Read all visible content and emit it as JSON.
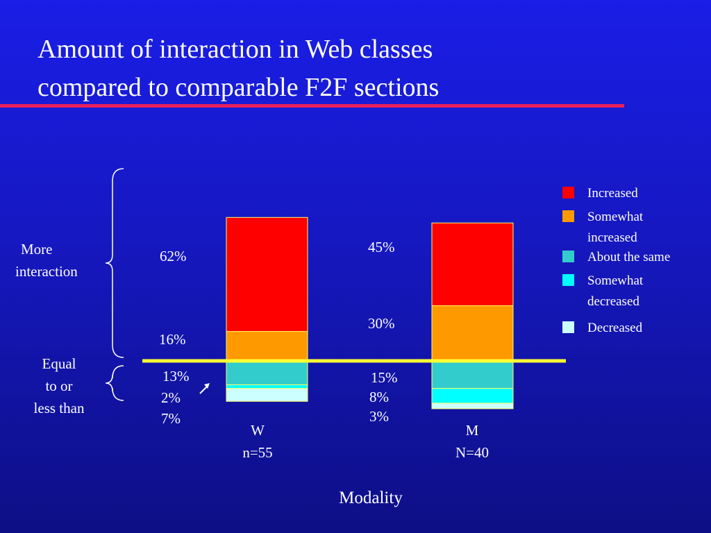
{
  "title": {
    "line1": "Amount of interaction in Web classes",
    "line2": "compared to comparable F2F sections"
  },
  "groups": {
    "more": [
      "More",
      "interaction"
    ],
    "equal": [
      "Equal",
      "to or",
      "less than"
    ]
  },
  "colors": {
    "increased": "#ff0000",
    "somewhat_increased": "#ff9900",
    "about_same": "#33cccc",
    "somewhat_decreased": "#00ffff",
    "decreased": "#ccffff",
    "baseline": "#ffff33",
    "brace": "#ffffff",
    "rule": "#e8205a"
  },
  "chart_data": {
    "type": "bar",
    "stacked": true,
    "xlabel": "Modality",
    "categories": [
      {
        "label": "W",
        "n_label": "n=55"
      },
      {
        "label": "M",
        "n_label": "N=40"
      }
    ],
    "series": [
      {
        "name": "Increased",
        "color": "#ff0000",
        "values": [
          62,
          45
        ],
        "labels": [
          "62%",
          "45%"
        ]
      },
      {
        "name": "Somewhat increased",
        "color": "#ff9900",
        "values": [
          16,
          30
        ],
        "labels": [
          "16%",
          "30%"
        ]
      },
      {
        "name": "About the same",
        "color": "#33cccc",
        "values": [
          13,
          15
        ],
        "labels": [
          "13%",
          "15%"
        ]
      },
      {
        "name": "Somewhat decreased",
        "color": "#00ffff",
        "values": [
          2,
          8
        ],
        "labels": [
          "2%",
          "8%"
        ]
      },
      {
        "name": "Decreased",
        "color": "#ccffff",
        "values": [
          7,
          3
        ],
        "labels": [
          "7%",
          "3%"
        ]
      }
    ],
    "legend": {
      "position": "right",
      "entries": [
        "Increased",
        [
          "Somewhat",
          "increased"
        ],
        "About the same",
        [
          "Somewhat",
          "decreased"
        ],
        "Decreased"
      ]
    },
    "baseline_between": [
      "Somewhat increased",
      "About the same"
    ],
    "gridlines": false
  }
}
